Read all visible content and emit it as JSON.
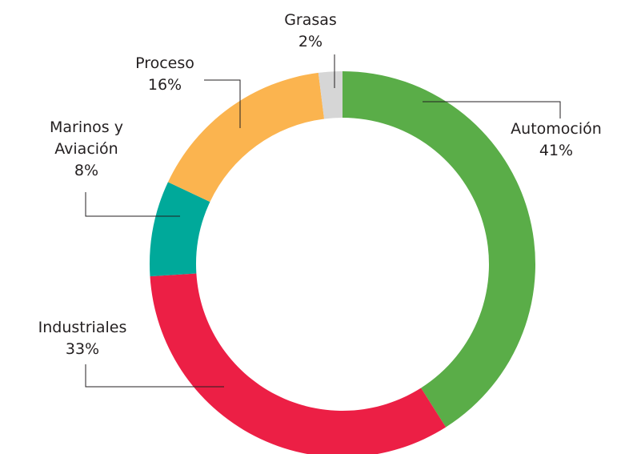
{
  "chart_data": {
    "type": "donut",
    "categories": [
      "Automoción",
      "Industriales",
      "Marinos y Aviación",
      "Proceso",
      "Grasas"
    ],
    "values": [
      41,
      33,
      8,
      16,
      2
    ],
    "value_labels": [
      "41%",
      "33%",
      "8%",
      "16%",
      "2%"
    ],
    "colors": [
      "#5aad48",
      "#ec1f45",
      "#00a99a",
      "#fbb44f",
      "#d6d6d6"
    ]
  }
}
